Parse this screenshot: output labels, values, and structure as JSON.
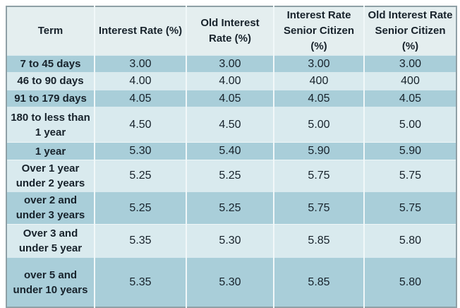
{
  "theme": {
    "page_bg": "#ffffff",
    "header_bg": "#e4eeef",
    "row_dark_bg": "#a9ced9",
    "row_light_bg": "#d9eaee",
    "text_color": "#17222b",
    "outer_border": "#8fa0a6",
    "grid_line": "#f1f8f9"
  },
  "chart_data": {
    "type": "table",
    "columns": [
      "Term",
      "Interest Rate (%)",
      "Old Interest Rate (%)",
      "Interest Rate Senior Citizen (%)",
      "Old Interest Rate Senior Citizen (%)"
    ],
    "rows": [
      {
        "term": "7 to 45 days",
        "values": [
          "3.00",
          "3.00",
          "3.00",
          "3.00"
        ]
      },
      {
        "term": "46 to 90 days",
        "values": [
          "4.00",
          "4.00",
          "400",
          "400"
        ]
      },
      {
        "term": "91 to 179 days",
        "values": [
          "4.05",
          "4.05",
          "4.05",
          "4.05"
        ]
      },
      {
        "term": "180 to less than 1 year",
        "values": [
          "4.50",
          "4.50",
          "5.00",
          "5.00"
        ]
      },
      {
        "term": "1 year",
        "values": [
          "5.30",
          "5.40",
          "5.90",
          "5.90"
        ]
      },
      {
        "term": "Over 1 year under 2 years",
        "values": [
          "5.25",
          "5.25",
          "5.75",
          "5.75"
        ]
      },
      {
        "term": "over 2 and under 3 years",
        "values": [
          "5.25",
          "5.25",
          "5.75",
          "5.75"
        ]
      },
      {
        "term": "Over 3 and under 5 year",
        "values": [
          "5.35",
          "5.30",
          "5.85",
          "5.80"
        ]
      },
      {
        "term": "over 5 and under 10 years",
        "values": [
          "5.35",
          "5.30",
          "5.85",
          "5.80"
        ]
      }
    ]
  }
}
